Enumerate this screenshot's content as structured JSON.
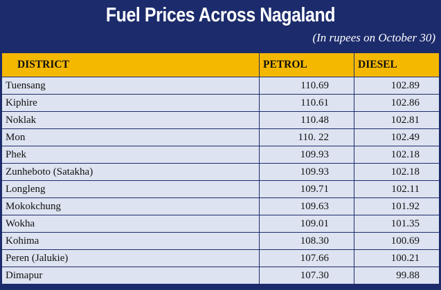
{
  "title": "Fuel Prices Across Nagaland",
  "subtitle": "(In rupees on October 30)",
  "headers": [
    "DISTRICT",
    "PETROL",
    "DIESEL"
  ],
  "colors": {
    "header_bg": "#1c2b6b",
    "column_header_bg": "#f5b800",
    "row_bg": "#dde3f0"
  },
  "chart_data": {
    "type": "table",
    "title": "Fuel Prices Across Nagaland",
    "subtitle": "(In rupees on October 30)",
    "columns": [
      "DISTRICT",
      "PETROL",
      "DIESEL"
    ],
    "rows": [
      [
        "Tuensang",
        "110.69",
        "102.89"
      ],
      [
        "Kiphire",
        "110.61",
        "102.86"
      ],
      [
        "Noklak",
        "110.48",
        "102.81"
      ],
      [
        "Mon",
        "110. 22",
        "102.49"
      ],
      [
        "Phek",
        "109.93",
        "102.18"
      ],
      [
        "Zunheboto (Satakha)",
        "109.93",
        "102.18"
      ],
      [
        "Longleng",
        "109.71",
        "102.11"
      ],
      [
        "Mokokchung",
        "109.63",
        "101.92"
      ],
      [
        "Wokha",
        "109.01",
        "101.35"
      ],
      [
        "Kohima",
        "108.30",
        "100.69"
      ],
      [
        "Peren (Jalukie)",
        "107.66",
        "100.21"
      ],
      [
        "Dimapur",
        "107.30",
        "99.88"
      ]
    ]
  }
}
